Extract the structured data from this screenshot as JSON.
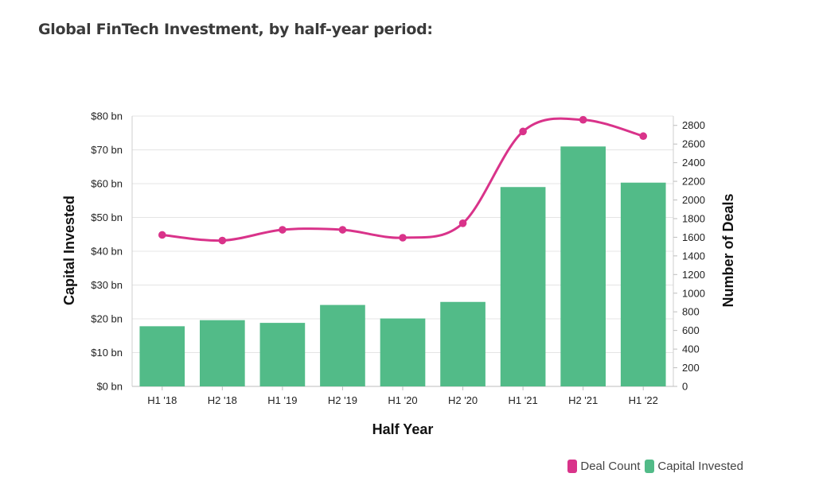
{
  "title": "Global FinTech Investment, by half-year period:",
  "chart_data": {
    "type": "bar",
    "categories": [
      "H1 '18",
      "H2 '18",
      "H1 '19",
      "H2 '19",
      "H1 '20",
      "H2 '20",
      "H1 '21",
      "H2 '21",
      "H1 '22"
    ],
    "series": [
      {
        "name": "Capital Invested",
        "type": "bar",
        "axis": "left",
        "color": "#52bb88",
        "values": [
          17.8,
          19.6,
          18.8,
          24.1,
          20.1,
          25.0,
          59.0,
          71.0,
          60.3
        ]
      },
      {
        "name": "Deal Count",
        "type": "line",
        "axis": "right",
        "color": "#d9338a",
        "values": [
          1625,
          1565,
          1680,
          1680,
          1595,
          1750,
          2735,
          2860,
          2685
        ]
      }
    ],
    "xlabel": "Half Year",
    "ylabel_left": "Capital Invested",
    "ylabel_right": "Number of Deals",
    "ylim_left": [
      0,
      80
    ],
    "ylim_right": [
      0,
      2900
    ],
    "yticks_left": [
      "$0 bn",
      "$10 bn",
      "$20 bn",
      "$30 bn",
      "$40 bn",
      "$50 bn",
      "$60 bn",
      "$70 bn",
      "$80 bn"
    ],
    "yticks_left_values": [
      0,
      10,
      20,
      30,
      40,
      50,
      60,
      70,
      80
    ],
    "yticks_right": [
      0,
      200,
      400,
      600,
      800,
      1000,
      1200,
      1400,
      1600,
      1800,
      2000,
      2200,
      2400,
      2600,
      2800
    ],
    "grid": true,
    "legend_position": "bottom-right"
  },
  "legend": [
    {
      "label": "Deal Count",
      "color": "#d9338a"
    },
    {
      "label": "Capital Invested",
      "color": "#52bb88"
    }
  ]
}
